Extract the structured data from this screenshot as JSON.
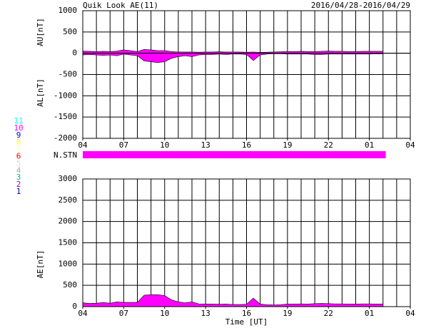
{
  "chart_data": [
    {
      "type": "area",
      "title": "Quik Look AE(11)",
      "subtitle": "2016/04/28-2016/04/29",
      "x": [
        4,
        4.5,
        5,
        5.5,
        6,
        6.5,
        7,
        7.5,
        8,
        8.5,
        9,
        9.5,
        10,
        10.5,
        11,
        11.5,
        12,
        12.5,
        13,
        13.5,
        14,
        14.5,
        15,
        15.5,
        16,
        16.5,
        17,
        17.5,
        18,
        18.5,
        19,
        19.5,
        20,
        20.5,
        21,
        21.5,
        22,
        22.5,
        23,
        23.5,
        24,
        24.5,
        25,
        25.5,
        26
      ],
      "series": [
        {
          "name": "AU[nT]",
          "color": "#ff00ff",
          "values": [
            50,
            45,
            40,
            45,
            40,
            50,
            80,
            60,
            40,
            90,
            80,
            60,
            60,
            40,
            30,
            30,
            30,
            25,
            30,
            30,
            35,
            30,
            30,
            30,
            25,
            30,
            20,
            25,
            30,
            35,
            40,
            40,
            45,
            40,
            40,
            45,
            50,
            45,
            45,
            40,
            40,
            45,
            45,
            45,
            45
          ]
        },
        {
          "name": "AL[nT]",
          "color": "#ff00ff",
          "values": [
            -40,
            -30,
            -40,
            -50,
            -40,
            -60,
            -20,
            -40,
            -60,
            -180,
            -200,
            -220,
            -200,
            -120,
            -80,
            -60,
            -80,
            -40,
            -30,
            -30,
            -20,
            -30,
            -20,
            -20,
            -30,
            -170,
            -40,
            -20,
            -10,
            -10,
            -20,
            -20,
            -20,
            -20,
            -30,
            -30,
            -20,
            -20,
            -20,
            -20,
            -20,
            -20,
            -20,
            -15,
            -15
          ]
        }
      ],
      "xlim": [
        4,
        28
      ],
      "xticks": [
        {
          "value": 4,
          "label": "04"
        },
        {
          "value": 7,
          "label": "07"
        },
        10,
        13,
        16,
        19,
        22,
        {
          "value": 25,
          "label": "01"
        },
        {
          "value": 28,
          "label": "04"
        }
      ],
      "ylim": [
        -2000,
        1000
      ],
      "yticks": [
        -2000,
        -1500,
        -1000,
        -500,
        0,
        500,
        1000
      ],
      "grid": true
    },
    {
      "type": "area",
      "xlabel": "Time [UT]",
      "x": [
        4,
        4.5,
        5,
        5.5,
        6,
        6.5,
        7,
        7.5,
        8,
        8.5,
        9,
        9.5,
        10,
        10.5,
        11,
        11.5,
        12,
        12.5,
        13,
        13.5,
        14,
        14.5,
        15,
        15.5,
        16,
        16.5,
        17,
        17.5,
        18,
        18.5,
        19,
        19.5,
        20,
        20.5,
        21,
        21.5,
        22,
        22.5,
        23,
        23.5,
        24,
        24.5,
        25,
        25.5,
        26
      ],
      "series": [
        {
          "name": "AE[nT]",
          "color": "#ff00ff",
          "values": [
            90,
            75,
            80,
            95,
            80,
            110,
            100,
            100,
            100,
            270,
            280,
            280,
            260,
            160,
            110,
            90,
            110,
            65,
            60,
            60,
            55,
            60,
            50,
            50,
            55,
            200,
            60,
            45,
            40,
            45,
            60,
            60,
            65,
            60,
            70,
            75,
            70,
            65,
            65,
            60,
            60,
            65,
            65,
            60,
            60
          ]
        }
      ],
      "xlim": [
        4,
        28
      ],
      "xticks": [
        {
          "value": 4,
          "label": "04"
        },
        {
          "value": 7,
          "label": "07"
        },
        10,
        13,
        16,
        19,
        22,
        {
          "value": 25,
          "label": "01"
        },
        {
          "value": 28,
          "label": "04"
        }
      ],
      "ylim": [
        0,
        3000
      ],
      "yticks": [
        0,
        500,
        1000,
        1500,
        2000,
        2500,
        3000
      ],
      "grid": true
    }
  ],
  "n_stn": {
    "label": "N.STN",
    "start": 4,
    "end": 26.2,
    "value": 10,
    "color": "#ff00ff"
  },
  "station_legend": [
    {
      "label": "11",
      "color": "#00ffff"
    },
    {
      "label": "10",
      "color": "#ff00ff"
    },
    {
      "label": "9",
      "color": "#0000ff"
    },
    {
      "label": "8",
      "color": "#ffff00"
    },
    {
      "label": "7",
      "color": "#ffff99"
    },
    {
      "label": "6",
      "color": "#ff0000"
    },
    {
      "label": "5",
      "color": "#dddddd"
    },
    {
      "label": "4",
      "color": "#aaaaaa"
    },
    {
      "label": "3",
      "color": "#00aaaa"
    },
    {
      "label": "2",
      "color": "#aa00aa"
    },
    {
      "label": "1",
      "color": "#0000aa"
    }
  ]
}
